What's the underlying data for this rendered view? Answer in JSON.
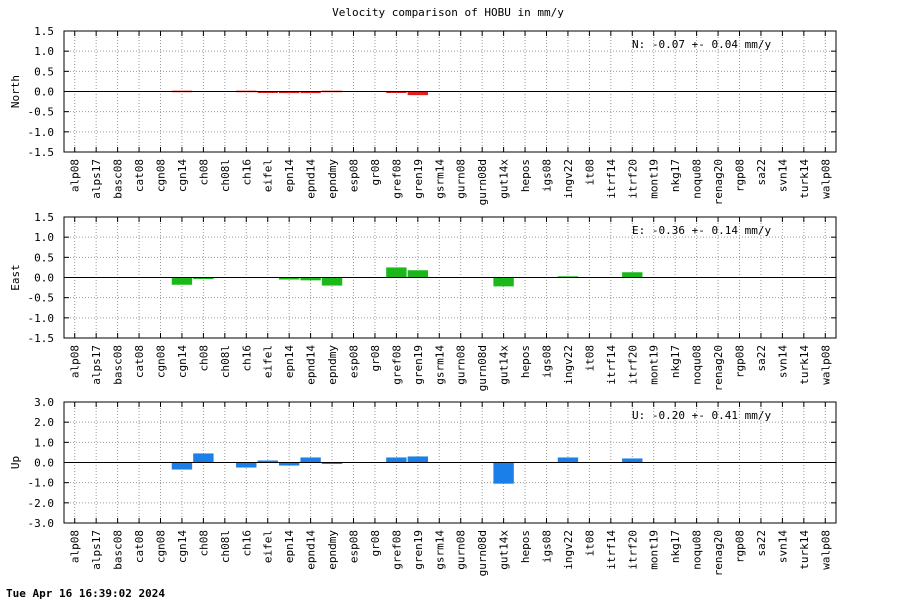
{
  "title": "Velocity comparison of HOBU in mm/y",
  "timestamp": "Tue Apr 16 16:39:02 2024",
  "colors": {
    "north": "#e02020",
    "east": "#1ab81a",
    "up": "#1a7fe8",
    "grid": "#999999",
    "axis": "#000000"
  },
  "chart_data": [
    {
      "type": "bar",
      "panel": "north",
      "ylabel": "North",
      "ylim": [
        -1.5,
        1.5
      ],
      "yticks": [
        -1.5,
        -1.0,
        -0.5,
        0.0,
        0.5,
        1.0,
        1.5
      ],
      "ytick_labels": [
        "-1.5",
        "-1.0",
        "-0.5",
        "0.0",
        "0.5",
        "1.0",
        "1.5"
      ],
      "grid": true,
      "annotation": "N:  -0.07 +-  0.04 mm/y",
      "categories": [
        "alp08",
        "alps17",
        "basc08",
        "cat08",
        "cgn08",
        "cgn14",
        "ch08",
        "ch08l",
        "ch16",
        "eifel",
        "epn14",
        "epnd14",
        "epndmy",
        "esp08",
        "gr08",
        "gref08",
        "gren19",
        "gsrm14",
        "gurn08",
        "gurn08d",
        "gut14x",
        "hepos",
        "igs08",
        "ingv22",
        "it08",
        "itrf14",
        "itrf20",
        "mont19",
        "nkg17",
        "noqu08",
        "renag20",
        "rgp08",
        "sa22",
        "svn14",
        "turk14",
        "walp08"
      ],
      "values": [
        0,
        0,
        0,
        0,
        0,
        0.02,
        0,
        0,
        0.02,
        -0.02,
        -0.04,
        -0.04,
        0.02,
        0,
        0,
        -0.03,
        -0.09,
        0,
        0,
        0,
        0,
        0,
        0,
        0,
        0,
        0,
        0,
        0,
        0,
        0,
        0,
        0,
        0,
        0,
        0,
        0
      ]
    },
    {
      "type": "bar",
      "panel": "east",
      "ylabel": "East",
      "ylim": [
        -1.5,
        1.5
      ],
      "yticks": [
        -1.5,
        -1.0,
        -0.5,
        0.0,
        0.5,
        1.0,
        1.5
      ],
      "ytick_labels": [
        "-1.5",
        "-1.0",
        "-0.5",
        "0.0",
        "0.5",
        "1.0",
        "1.5"
      ],
      "grid": true,
      "annotation": "E:  -0.36 +-  0.14 mm/y",
      "categories": [
        "alp08",
        "alps17",
        "basc08",
        "cat08",
        "cgn08",
        "cgn14",
        "ch08",
        "ch08l",
        "ch16",
        "eifel",
        "epn14",
        "epnd14",
        "epndmy",
        "esp08",
        "gr08",
        "gref08",
        "gren19",
        "gsrm14",
        "gurn08",
        "gurn08d",
        "gut14x",
        "hepos",
        "igs08",
        "ingv22",
        "it08",
        "itrf14",
        "itrf20",
        "mont19",
        "nkg17",
        "noqu08",
        "renag20",
        "rgp08",
        "sa22",
        "svn14",
        "turk14",
        "walp08"
      ],
      "values": [
        0,
        0,
        0,
        0,
        0,
        -0.18,
        -0.03,
        0,
        0,
        0,
        -0.05,
        -0.07,
        -0.2,
        0,
        0,
        0.25,
        0.18,
        0,
        0,
        0,
        -0.22,
        0,
        0,
        0.03,
        0,
        0,
        0.13,
        0,
        0,
        0,
        0,
        0,
        0,
        0,
        0,
        0
      ]
    },
    {
      "type": "bar",
      "panel": "up",
      "ylabel": "Up",
      "ylim": [
        -3.0,
        3.0
      ],
      "yticks": [
        -3.0,
        -2.0,
        -1.0,
        0.0,
        1.0,
        2.0,
        3.0
      ],
      "ytick_labels": [
        "-3.0",
        "-2.0",
        "-1.0",
        "0.0",
        "1.0",
        "2.0",
        "3.0"
      ],
      "grid": true,
      "annotation": "U:  -0.20 +-  0.41 mm/y",
      "categories": [
        "alp08",
        "alps17",
        "basc08",
        "cat08",
        "cgn08",
        "cgn14",
        "ch08",
        "ch08l",
        "ch16",
        "eifel",
        "epn14",
        "epnd14",
        "epndmy",
        "esp08",
        "gr08",
        "gref08",
        "gren19",
        "gsrm14",
        "gurn08",
        "gurn08d",
        "gut14x",
        "hepos",
        "igs08",
        "ingv22",
        "it08",
        "itrf14",
        "itrf20",
        "mont19",
        "nkg17",
        "noqu08",
        "renag20",
        "rgp08",
        "sa22",
        "svn14",
        "turk14",
        "walp08"
      ],
      "values": [
        0,
        0,
        0,
        0,
        0,
        -0.35,
        0.45,
        0,
        -0.25,
        0.1,
        -0.15,
        0.25,
        -0.05,
        0,
        0,
        0.25,
        0.3,
        0,
        0,
        0,
        -1.05,
        0,
        0,
        0.25,
        0,
        0,
        0.2,
        0,
        0,
        0,
        0,
        0,
        0,
        0,
        0,
        0
      ]
    }
  ]
}
